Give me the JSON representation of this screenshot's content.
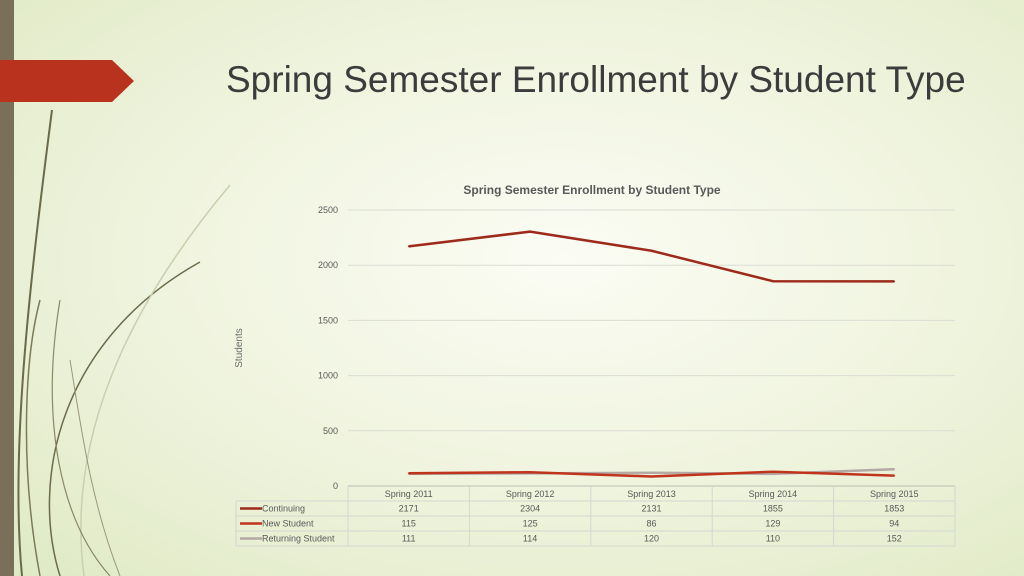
{
  "slide": {
    "title": "Spring Semester Enrollment by Student Type"
  },
  "colors": {
    "continuing": "#9e2a1b",
    "new_student": "#c0341d",
    "returning_student": "#b3aaa5",
    "accent": "#b9321d"
  },
  "chart_data": {
    "type": "line",
    "title": "Spring Semester Enrollment by Student Type",
    "xlabel": "",
    "ylabel": "Students",
    "ylim": [
      0,
      2500
    ],
    "yticks": [
      0,
      500,
      1000,
      1500,
      2000,
      2500
    ],
    "grid": true,
    "legend": "data-table",
    "categories": [
      "Spring 2011",
      "Spring 2012",
      "Spring 2013",
      "Spring 2014",
      "Spring 2015"
    ],
    "series": [
      {
        "name": "Continuing",
        "values": [
          2171,
          2304,
          2131,
          1855,
          1853
        ],
        "color": "#9e2a1b"
      },
      {
        "name": "New Student",
        "values": [
          115,
          125,
          86,
          129,
          94
        ],
        "color": "#c0341d"
      },
      {
        "name": "Returning Student",
        "values": [
          111,
          114,
          120,
          110,
          152
        ],
        "color": "#b3aaa5"
      }
    ]
  }
}
